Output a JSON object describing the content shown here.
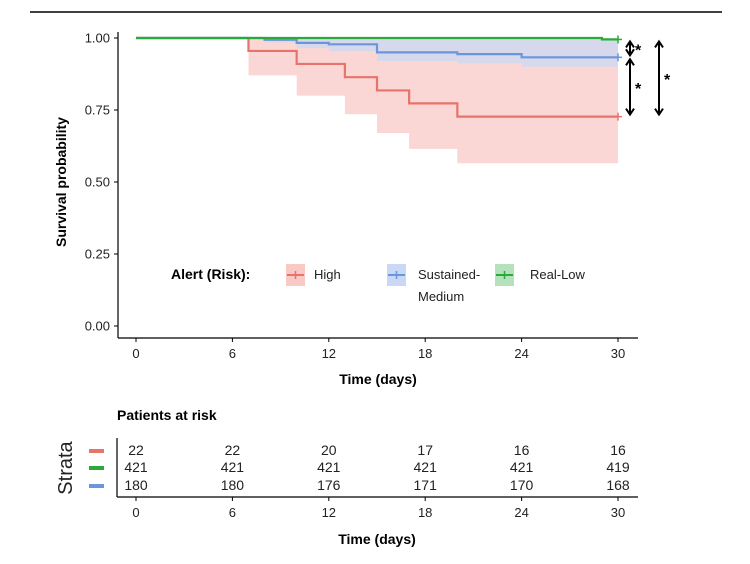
{
  "chart_data": [
    {
      "type": "line",
      "subtype": "kaplan-meier",
      "xlabel": "Time (days)",
      "ylabel": "Survival probability",
      "xlim": [
        0,
        30
      ],
      "ylim": [
        0,
        1
      ],
      "xticks": [
        0,
        6,
        12,
        18,
        24,
        30
      ],
      "yticks": [
        0.0,
        0.25,
        0.5,
        0.75,
        1.0
      ],
      "ytick_labels": [
        "0.00",
        "0.25",
        "0.50",
        "0.75",
        "1.00"
      ],
      "grid": false,
      "legend": {
        "title": "Alert (Risk):",
        "position": "bottom-center",
        "entries": [
          {
            "label_lines": [
              "High"
            ],
            "color": "#e8736b",
            "fill": "#f8c9c5"
          },
          {
            "label_lines": [
              "Sustained-",
              "Medium"
            ],
            "color": "#6c96dc",
            "fill": "#c9d8f4"
          },
          {
            "label_lines": [
              "Real-Low"
            ],
            "color": "#2aaa3a",
            "fill": "#b5e2bc"
          }
        ]
      },
      "series": [
        {
          "name": "High",
          "color": "#e8736b",
          "ci_color": "#f8c9c5",
          "steps": [
            [
              0,
              1.0
            ],
            [
              7,
              0.955
            ],
            [
              10,
              0.91
            ],
            [
              13,
              0.864
            ],
            [
              15,
              0.818
            ],
            [
              17,
              0.773
            ],
            [
              20,
              0.727
            ],
            [
              30,
              0.727
            ]
          ],
          "ci_lower": [
            [
              0,
              1.0
            ],
            [
              7,
              0.87
            ],
            [
              10,
              0.8
            ],
            [
              13,
              0.735
            ],
            [
              15,
              0.67
            ],
            [
              17,
              0.615
            ],
            [
              20,
              0.565
            ],
            [
              30,
              0.565
            ]
          ],
          "ci_upper": [
            [
              0,
              1.0
            ],
            [
              30,
              1.0
            ]
          ]
        },
        {
          "name": "Sustained-Medium",
          "color": "#6c96dc",
          "ci_color": "#c9d8f4",
          "steps": [
            [
              0,
              1.0
            ],
            [
              8,
              0.994
            ],
            [
              10,
              0.983
            ],
            [
              12,
              0.978
            ],
            [
              15,
              0.95
            ],
            [
              20,
              0.944
            ],
            [
              24,
              0.933
            ],
            [
              30,
              0.933
            ]
          ],
          "ci_lower": [
            [
              0,
              1.0
            ],
            [
              8,
              0.985
            ],
            [
              10,
              0.965
            ],
            [
              12,
              0.955
            ],
            [
              15,
              0.92
            ],
            [
              20,
              0.912
            ],
            [
              24,
              0.9
            ],
            [
              30,
              0.9
            ]
          ],
          "ci_upper": [
            [
              0,
              1.0
            ],
            [
              30,
              1.0
            ]
          ]
        },
        {
          "name": "Real-Low",
          "color": "#2aaa3a",
          "ci_color": "#b5e2bc",
          "steps": [
            [
              0,
              1.0
            ],
            [
              29,
              0.995
            ],
            [
              30,
              0.995
            ]
          ],
          "ci_lower": [
            [
              0,
              1.0
            ],
            [
              29,
              0.99
            ],
            [
              30,
              0.99
            ]
          ],
          "ci_upper": [
            [
              0,
              1.0
            ],
            [
              30,
              1.0
            ]
          ]
        }
      ],
      "annotations": [
        {
          "type": "significance-bracket",
          "between": [
            "Real-Low",
            "Sustained-Medium"
          ],
          "label": "*"
        },
        {
          "type": "significance-bracket",
          "between": [
            "Sustained-Medium",
            "High"
          ],
          "label": "*"
        },
        {
          "type": "significance-bracket",
          "between": [
            "Real-Low",
            "High"
          ],
          "label": "*"
        }
      ]
    },
    {
      "type": "table",
      "title": "Patients at risk",
      "ylabel": "Strata",
      "xlabel": "Time (days)",
      "columns": [
        0,
        6,
        12,
        18,
        24,
        30
      ],
      "rows": [
        {
          "strata": "High",
          "color": "#e8736b",
          "values": [
            22,
            22,
            20,
            17,
            16,
            16
          ]
        },
        {
          "strata": "Real-Low",
          "color": "#2aaa3a",
          "values": [
            421,
            421,
            421,
            421,
            421,
            419
          ]
        },
        {
          "strata": "Sustained-Medium",
          "color": "#6c96dc",
          "values": [
            180,
            180,
            176,
            171,
            170,
            168
          ]
        }
      ]
    }
  ]
}
